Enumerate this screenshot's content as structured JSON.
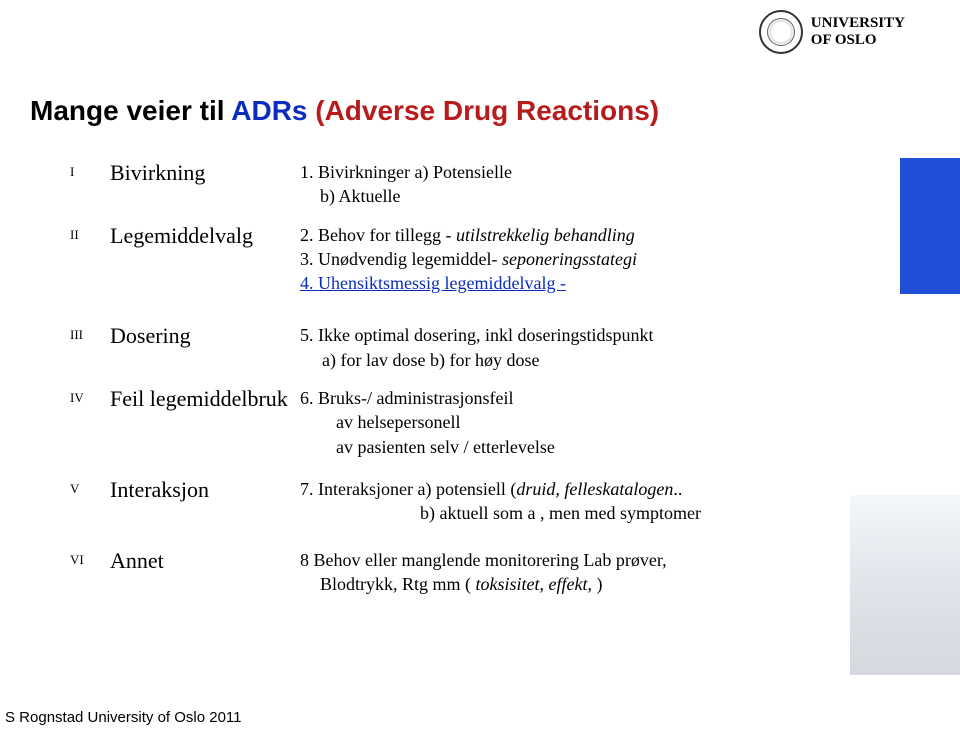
{
  "logo": {
    "line1": "UNIVERSITY",
    "line2": "OF OSLO"
  },
  "title": {
    "prefix": "Mange veier til ",
    "adr": "ADRs",
    "paren": " (Adverse Drug Reactions)"
  },
  "rows": [
    {
      "roman": "I",
      "label": "Bivirkning",
      "lines": [
        {
          "text": "1. Bivirkninger a) Potensielle"
        },
        {
          "text": "b) Aktuelle",
          "indent": 20
        }
      ]
    },
    {
      "roman": "II",
      "label": "Legemiddelvalg",
      "lines": [
        {
          "prefix": "2. Behov for tillegg  - ",
          "italic": "utilstrekkelig behandling"
        },
        {
          "prefix": "3. Unødvendig legemiddel- ",
          "italic": "seponeringsstategi"
        },
        {
          "blueUnderline": "4. Uhensiktsmessig legemiddelvalg  -"
        }
      ]
    },
    {
      "roman": "III",
      "label": "Dosering",
      "lines": [
        {
          "text": "5. Ikke optimal dosering, inkl doseringstidspunkt"
        },
        {
          "text": "a) for lav dose  b) for høy dose",
          "indent": 22
        }
      ],
      "gap_before": 28
    },
    {
      "roman": "IV",
      "label": "Feil legemiddelbruk",
      "lines": [
        {
          "text": "6. Bruks-/ administrasjonsfeil"
        },
        {
          "text": "av helsepersonell",
          "indent": 36
        },
        {
          "text": "av pasienten  selv / etterlevelse",
          "indent": 36
        }
      ],
      "gap_before": 14
    },
    {
      "roman": "V",
      "label": "Interaksjon",
      "lines": [
        {
          "prefix": "7. Interaksjoner  a) potensiell (",
          "italic": "druid, felleskatalogen",
          "suffix": ".."
        },
        {
          "text": "b) aktuell som a , men med symptomer",
          "indent": 120
        }
      ],
      "gap_before": 18
    },
    {
      "roman": "VI",
      "label": "Annet",
      "lines": [
        {
          "text": "8  Behov  eller manglende monitorering  Lab prøver,"
        },
        {
          "prefix": "Blodtrykk,      Rtg mm ( ",
          "italic": "toksisitet, effekt,",
          "suffix": " )",
          "indent": 20
        }
      ],
      "gap_before": 22
    }
  ],
  "footer": "S Rognstad University of Oslo 2011",
  "style": {
    "title_color_black": "#000000",
    "title_color_blue": "#0a2dbf",
    "title_color_red": "#b71c1c",
    "band_color": "#2050d8"
  }
}
